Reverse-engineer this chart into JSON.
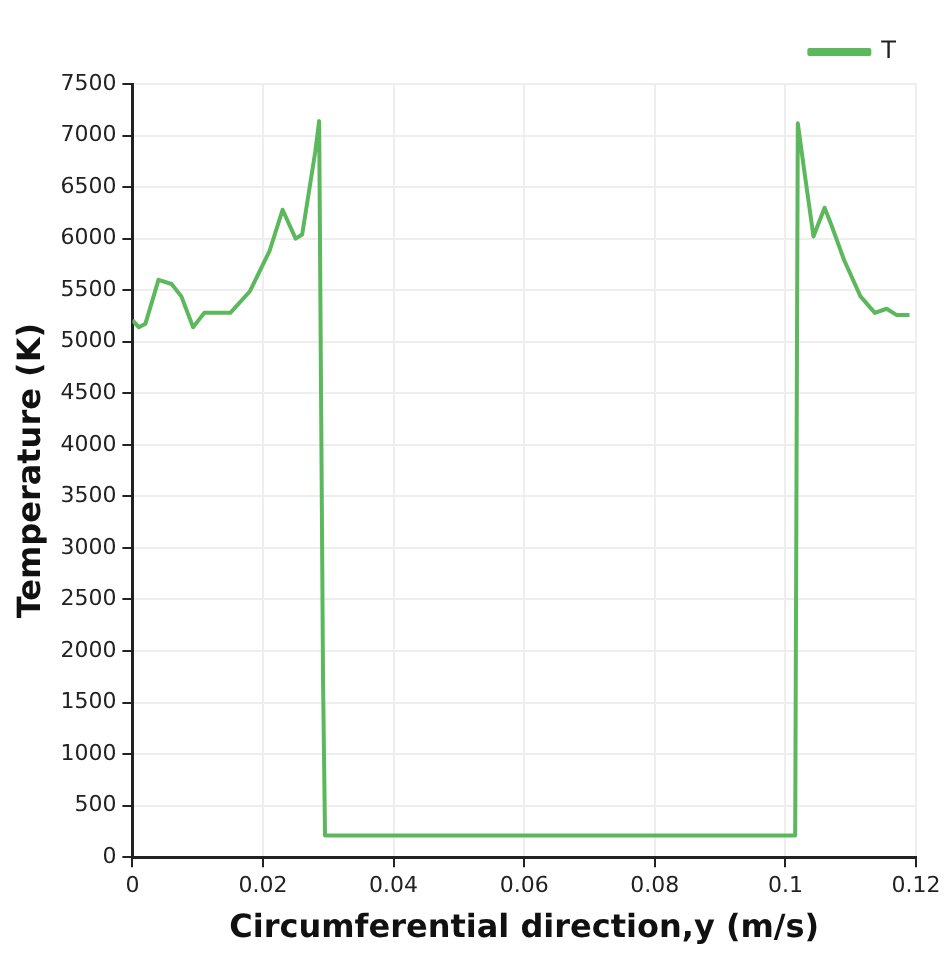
{
  "chart_data": {
    "type": "line",
    "xlabel": "Circumferential direction,y (m/s)",
    "ylabel": "Temperature (K)",
    "x": [
      0,
      0.001,
      0.002,
      0.004,
      0.006,
      0.0075,
      0.0093,
      0.011,
      0.015,
      0.018,
      0.021,
      0.023,
      0.025,
      0.026,
      0.028,
      0.0286,
      0.0292,
      0.0295,
      0.04,
      0.06,
      0.08,
      0.1,
      0.1015,
      0.1019,
      0.1028,
      0.1043,
      0.106,
      0.107,
      0.109,
      0.1115,
      0.1137,
      0.1155,
      0.117,
      0.119
    ],
    "series": [
      {
        "name": "T",
        "color": "#5cb85c",
        "values": [
          5210,
          5140,
          5175,
          5600,
          5560,
          5440,
          5140,
          5280,
          5280,
          5490,
          5880,
          6280,
          6000,
          6040,
          6840,
          7140,
          1700,
          210,
          210,
          210,
          210,
          210,
          210,
          7120,
          6700,
          6020,
          6300,
          6140,
          5790,
          5440,
          5280,
          5320,
          5260,
          5260
        ]
      }
    ],
    "xlim": [
      0,
      0.12
    ],
    "xticks": [
      0,
      0.02,
      0.04,
      0.06,
      0.08,
      0.1,
      0.12
    ],
    "ylim": [
      0,
      7500
    ],
    "yticks": [
      0,
      500,
      1000,
      1500,
      2000,
      2500,
      3000,
      3500,
      4000,
      4500,
      5000,
      5500,
      6000,
      6500,
      7000,
      7500
    ],
    "grid": true,
    "legend": "top right",
    "marker": "none",
    "line_style": "solid"
  }
}
